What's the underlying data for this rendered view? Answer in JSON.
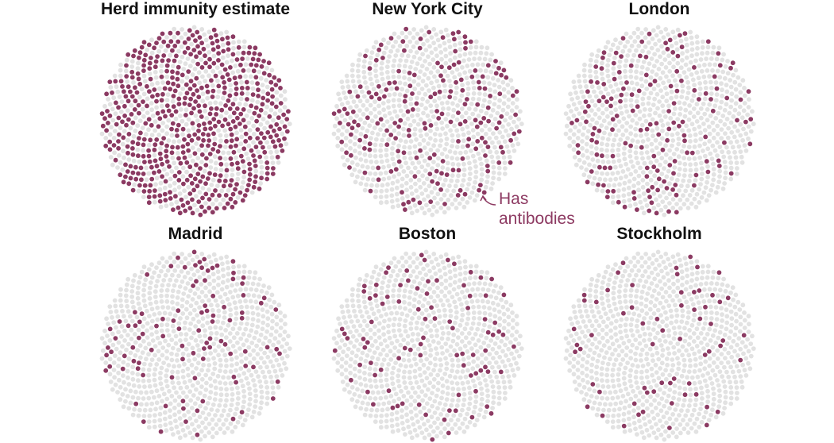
{
  "colors": {
    "antibodies": "#8b3a62",
    "no_antibodies": "#e2e2e2"
  },
  "annotation": {
    "line1": "Has",
    "line2": "antibodies"
  },
  "chart_data": [
    {
      "type": "scatter",
      "title": "Herd immunity estimate",
      "percent_with_antibodies": 60
    },
    {
      "type": "scatter",
      "title": "New York City",
      "percent_with_antibodies": 21
    },
    {
      "type": "scatter",
      "title": "London",
      "percent_with_antibodies": 17
    },
    {
      "type": "scatter",
      "title": "Madrid",
      "percent_with_antibodies": 11
    },
    {
      "type": "scatter",
      "title": "Boston",
      "percent_with_antibodies": 10
    },
    {
      "type": "scatter",
      "title": "Stockholm",
      "percent_with_antibodies": 7
    }
  ]
}
